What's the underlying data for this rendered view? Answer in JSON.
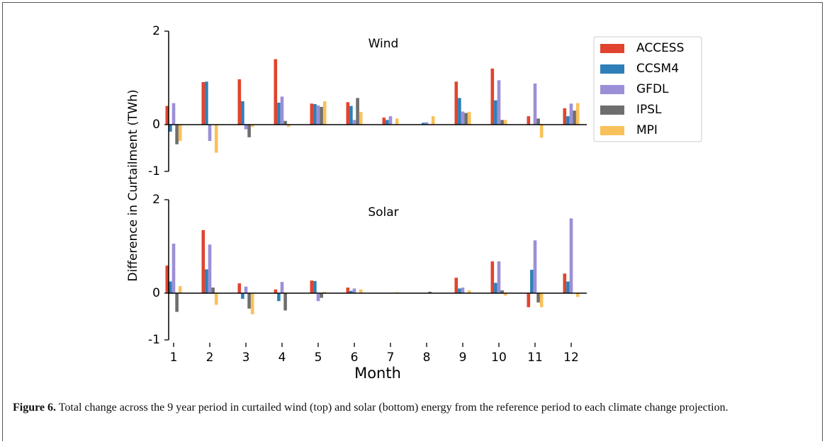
{
  "chart_data": [
    {
      "type": "bar",
      "title": "Wind",
      "ylabel": "Difference in Curtailment (TWh)",
      "ylim": [
        -1,
        2
      ],
      "yticks": [
        2,
        0,
        -1
      ],
      "legend": "upper right",
      "series": [
        {
          "name": "ACCESS",
          "color": "#e0442e",
          "values": [
            0.4,
            0.91,
            0.97,
            1.4,
            0.45,
            0.48,
            0.15,
            0,
            0.92,
            1.2,
            0.18,
            0.35
          ]
        },
        {
          "name": "CCSM4",
          "color": "#2e7fb8",
          "values": [
            -0.15,
            0.92,
            0.5,
            0.47,
            0.44,
            0.4,
            0.1,
            0.04,
            0.57,
            0.52,
            0,
            0.18
          ]
        },
        {
          "name": "GFDL",
          "color": "#9b8fd8",
          "values": [
            0.46,
            -0.35,
            -0.1,
            0.6,
            0.41,
            0.1,
            0.18,
            0.05,
            0.28,
            0.95,
            0.88,
            0.45
          ]
        },
        {
          "name": "IPSL",
          "color": "#6e6e6e",
          "values": [
            -0.42,
            0,
            -0.27,
            0.08,
            0.38,
            0.57,
            0,
            0,
            0.25,
            0.1,
            0.13,
            0.3
          ]
        },
        {
          "name": "MPI",
          "color": "#f9c15a",
          "values": [
            -0.35,
            -0.6,
            -0.05,
            -0.05,
            0.5,
            0.27,
            0.13,
            0.18,
            0.27,
            0.1,
            -0.28,
            0.46
          ]
        }
      ]
    },
    {
      "type": "bar",
      "title": "Solar",
      "xlabel": "Month",
      "categories": [
        "1",
        "2",
        "3",
        "4",
        "5",
        "6",
        "7",
        "8",
        "9",
        "10",
        "11",
        "12"
      ],
      "ylim": [
        -1,
        2
      ],
      "yticks": [
        2,
        0,
        -1
      ],
      "series": [
        {
          "color": "#e0442e",
          "values": [
            0.59,
            1.35,
            0.21,
            0.08,
            0.27,
            0.12,
            0,
            0,
            0.33,
            0.68,
            -0.3,
            0.42
          ]
        },
        {
          "color": "#2e7fb8",
          "values": [
            0.25,
            0.51,
            -0.12,
            -0.17,
            0.26,
            0.05,
            0,
            0,
            0.1,
            0.22,
            0.5,
            0.25
          ]
        },
        {
          "color": "#9b8fd8",
          "values": [
            1.06,
            1.04,
            0.14,
            0.24,
            -0.17,
            0.1,
            0,
            0,
            0.12,
            0.68,
            1.13,
            1.6
          ]
        },
        {
          "color": "#6e6e6e",
          "values": [
            -0.4,
            0.12,
            -0.33,
            -0.37,
            -0.1,
            0,
            0,
            0.03,
            0,
            0.06,
            -0.2,
            0
          ]
        },
        {
          "color": "#f9c15a",
          "values": [
            0.15,
            -0.25,
            -0.45,
            0,
            0.03,
            0.08,
            0.02,
            0,
            0.06,
            -0.05,
            -0.3,
            -0.08
          ]
        }
      ]
    }
  ],
  "caption": {
    "label": "Figure 6.",
    "text": "Total change across the 9 year period in curtailed wind (top) and solar (bottom) energy from the reference period to each climate change projection."
  }
}
